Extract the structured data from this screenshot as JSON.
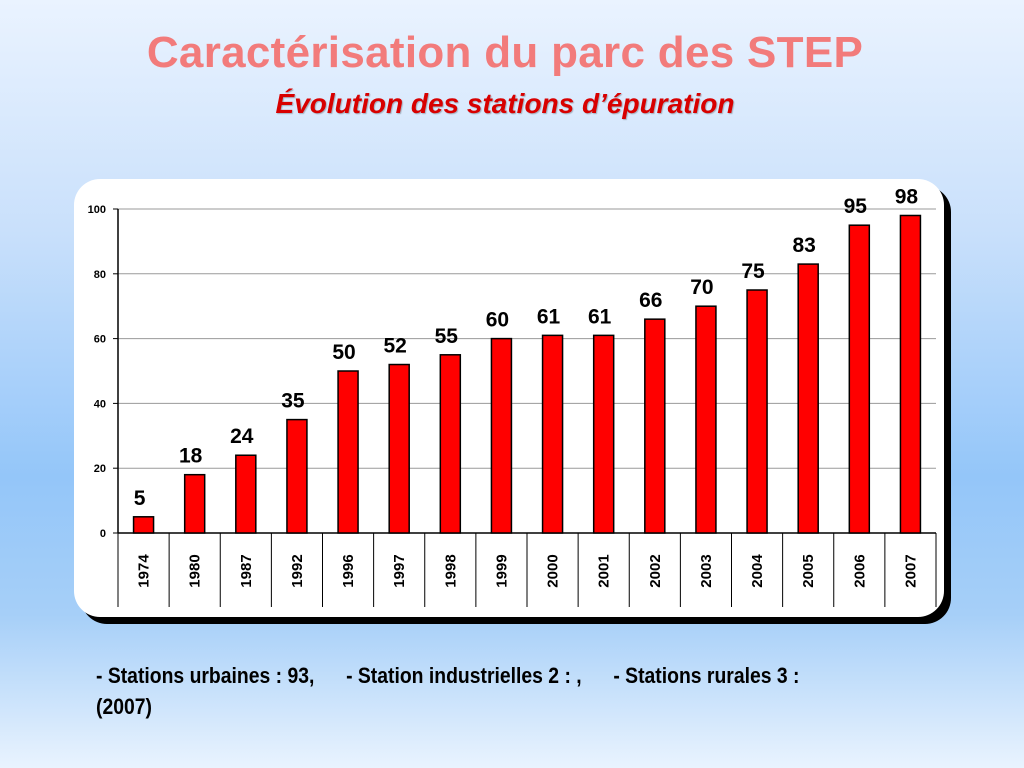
{
  "slide": {
    "title": "Caractérisation du parc des STEP",
    "subtitle": "Évolution des stations d’épuration"
  },
  "footnote": {
    "urbaines": "- Stations urbaines : 93,",
    "industrielles": "- Station industrielles 2 : ,",
    "rurales": "- Stations rurales 3 :",
    "year": "(2007)"
  },
  "colors": {
    "bar": "#ff0000",
    "bar_outline": "#000000",
    "title": "#f27b7b",
    "subtitle": "#d80000"
  },
  "chart_data": {
    "type": "bar",
    "categories": [
      "1974",
      "1980",
      "1987",
      "1992",
      "1996",
      "1997",
      "1998",
      "1999",
      "2000",
      "2001",
      "2002",
      "2003",
      "2004",
      "2005",
      "2006",
      "2007"
    ],
    "values": [
      5,
      18,
      24,
      35,
      50,
      52,
      55,
      60,
      61,
      61,
      66,
      70,
      75,
      83,
      95,
      98
    ],
    "data_labels": [
      "5",
      "18",
      "24",
      "35",
      "50",
      "52",
      "55",
      "60",
      "61",
      "61",
      "66",
      "70",
      "75",
      "83",
      "95",
      "98"
    ],
    "y_ticks": [
      "0",
      "20",
      "40",
      "60",
      "80",
      "100"
    ],
    "ylim": [
      0,
      100
    ],
    "grid": true,
    "legend": "none"
  }
}
